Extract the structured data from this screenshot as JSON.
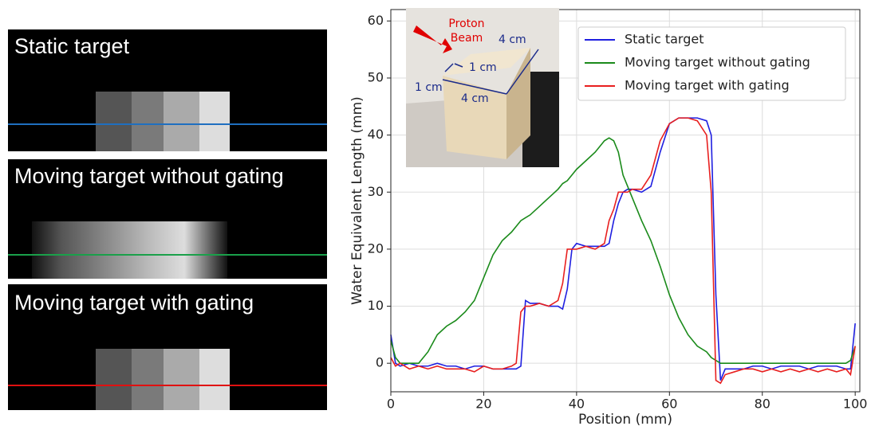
{
  "panels": [
    {
      "label": "Static target"
    },
    {
      "label": "Moving target without gating"
    },
    {
      "label": "Moving target with gating"
    }
  ],
  "inset": {
    "beam_label": [
      "Proton",
      "Beam"
    ],
    "dims": [
      "4 cm",
      "1 cm",
      "1 cm",
      "4 cm"
    ]
  },
  "chart_data": {
    "type": "line",
    "xlabel": "Position (mm)",
    "ylabel": "Water Equivalent Length (mm)",
    "x": [
      0,
      1,
      2,
      4,
      6,
      8,
      10,
      12,
      14,
      16,
      18,
      20,
      22,
      24,
      26,
      27,
      28,
      29,
      30,
      32,
      34,
      36,
      37,
      38,
      39,
      40,
      42,
      44,
      46,
      47,
      48,
      49,
      50,
      51,
      52,
      54,
      56,
      58,
      60,
      62,
      64,
      66,
      68,
      69,
      70,
      71,
      72,
      74,
      76,
      78,
      80,
      82,
      84,
      86,
      88,
      90,
      92,
      94,
      96,
      98,
      99,
      100
    ],
    "series": [
      {
        "name": "Static target",
        "color": "#1f1fe0",
        "values": [
          5,
          0,
          -0.5,
          0,
          -0.5,
          -0.5,
          0,
          -0.5,
          -0.5,
          -1,
          -0.5,
          -0.5,
          -1,
          -1,
          -1,
          -1,
          -0.5,
          11,
          10.5,
          10.5,
          10,
          10,
          9.5,
          13,
          20,
          21,
          20.5,
          20.5,
          20.5,
          21,
          25,
          28,
          30,
          30.5,
          30.5,
          30,
          31,
          37,
          42,
          43,
          43,
          43,
          42.5,
          40,
          12,
          -3,
          -1,
          -1,
          -1,
          -0.5,
          -0.5,
          -1,
          -0.5,
          -0.5,
          -0.5,
          -1,
          -0.5,
          -0.5,
          -0.5,
          -1,
          -1,
          7
        ]
      },
      {
        "name": "Moving target without gating",
        "color": "#1a8a1a",
        "values": [
          4,
          1,
          0,
          0,
          0,
          2,
          5,
          6.5,
          7.5,
          9,
          11,
          15,
          19,
          21.5,
          23,
          24,
          25,
          25.5,
          26,
          27.5,
          29,
          30.5,
          31.5,
          32,
          33,
          34,
          35.5,
          37,
          39,
          39.5,
          39,
          37,
          33,
          31,
          29,
          25,
          21.5,
          17,
          12,
          8,
          5,
          3,
          2,
          1,
          0.5,
          0,
          0,
          0,
          0,
          0,
          0,
          0,
          0,
          0,
          0,
          0,
          0,
          0,
          0,
          0,
          0.5,
          3
        ]
      },
      {
        "name": "Moving target with gating",
        "color": "#e81f1f",
        "values": [
          1,
          -0.5,
          0,
          -1,
          -0.5,
          -1,
          -0.5,
          -1,
          -1,
          -1,
          -1.5,
          -0.5,
          -1,
          -1,
          -0.5,
          0,
          9,
          10,
          10,
          10.5,
          10,
          11,
          14,
          20,
          20,
          20,
          20.5,
          20,
          21,
          25,
          27,
          30,
          30,
          30,
          30.5,
          30.5,
          33,
          39,
          42,
          43,
          43,
          42.5,
          40,
          30,
          -3,
          -3.5,
          -2,
          -1.5,
          -1,
          -1,
          -1.5,
          -1,
          -1.5,
          -1,
          -1.5,
          -1,
          -1.5,
          -1,
          -1.5,
          -1,
          -2,
          3
        ]
      }
    ],
    "xlim": [
      0,
      101
    ],
    "ylim": [
      -5,
      62
    ],
    "xticks": [
      0,
      20,
      40,
      60,
      80,
      100
    ],
    "yticks": [
      0,
      10,
      20,
      30,
      40,
      50,
      60
    ],
    "grid": true,
    "legend": "upper right"
  }
}
